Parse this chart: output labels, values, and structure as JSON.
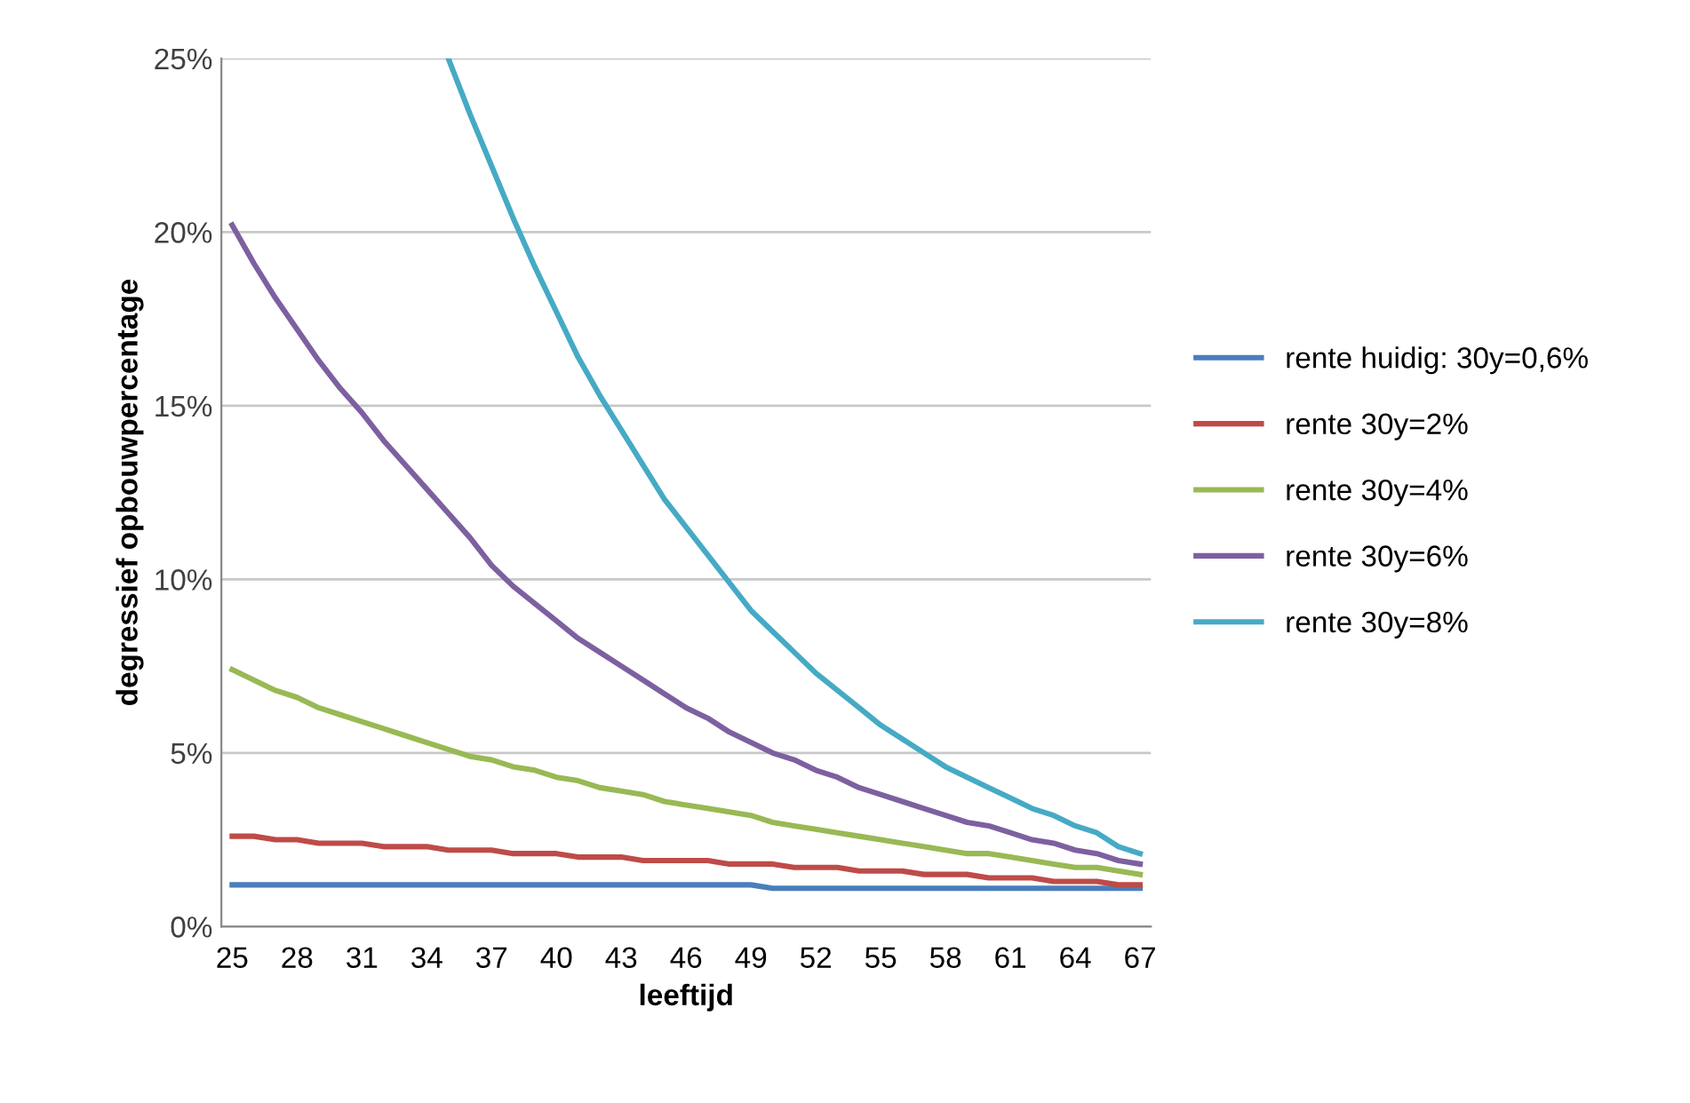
{
  "chart_data": {
    "type": "line",
    "xlabel": "leeftijd",
    "ylabel": "degressief opbouwpercentage",
    "categories": [
      "25",
      null,
      null,
      "28",
      null,
      null,
      "31",
      null,
      null,
      "34",
      null,
      null,
      "37",
      null,
      null,
      "40",
      null,
      null,
      "43",
      null,
      null,
      "46",
      null,
      null,
      "49",
      null,
      null,
      "52",
      null,
      null,
      "55",
      null,
      null,
      "58",
      null,
      null,
      "61",
      null,
      null,
      "64",
      null,
      null,
      "67"
    ],
    "ylim": [
      0,
      25
    ],
    "yticks": [
      {
        "value": 0,
        "label": "0%"
      },
      {
        "value": 5,
        "label": "5%"
      },
      {
        "value": 10,
        "label": "10%"
      },
      {
        "value": 15,
        "label": "15%"
      },
      {
        "value": 20,
        "label": "20%"
      },
      {
        "value": 25,
        "label": "25%"
      }
    ],
    "grid": "y",
    "legend": "right",
    "marker": "none",
    "line_style": "solid",
    "series": [
      {
        "name": "rente huidig: 30y=0,6%",
        "color": "#4a7ebb",
        "values": [
          1.2,
          1.2,
          1.2,
          1.2,
          1.2,
          1.2,
          1.2,
          1.2,
          1.2,
          1.2,
          1.2,
          1.2,
          1.2,
          1.2,
          1.2,
          1.2,
          1.2,
          1.2,
          1.2,
          1.2,
          1.2,
          1.2,
          1.2,
          1.2,
          1.2,
          1.1,
          1.1,
          1.1,
          1.1,
          1.1,
          1.1,
          1.1,
          1.1,
          1.1,
          1.1,
          1.1,
          1.1,
          1.1,
          1.1,
          1.1,
          1.1,
          1.1,
          1.1
        ]
      },
      {
        "name": "rente 30y=2%",
        "color": "#be4b48",
        "values": [
          2.6,
          2.6,
          2.5,
          2.5,
          2.4,
          2.4,
          2.4,
          2.3,
          2.3,
          2.3,
          2.2,
          2.2,
          2.2,
          2.1,
          2.1,
          2.1,
          2.0,
          2.0,
          2.0,
          1.9,
          1.9,
          1.9,
          1.9,
          1.8,
          1.8,
          1.8,
          1.7,
          1.7,
          1.7,
          1.6,
          1.6,
          1.6,
          1.5,
          1.5,
          1.5,
          1.4,
          1.4,
          1.4,
          1.3,
          1.3,
          1.3,
          1.2,
          1.2
        ]
      },
      {
        "name": "rente 30y=4%",
        "color": "#98b954",
        "values": [
          7.4,
          7.1,
          6.8,
          6.6,
          6.3,
          6.1,
          5.9,
          5.7,
          5.5,
          5.3,
          5.1,
          4.9,
          4.8,
          4.6,
          4.5,
          4.3,
          4.2,
          4.0,
          3.9,
          3.8,
          3.6,
          3.5,
          3.4,
          3.3,
          3.2,
          3.0,
          2.9,
          2.8,
          2.7,
          2.6,
          2.5,
          2.4,
          2.3,
          2.2,
          2.1,
          2.1,
          2.0,
          1.9,
          1.8,
          1.7,
          1.7,
          1.6,
          1.5
        ]
      },
      {
        "name": "rente 30y=6%",
        "color": "#7d60a0",
        "values": [
          20.2,
          19.1,
          18.1,
          17.2,
          16.3,
          15.5,
          14.8,
          14.0,
          13.3,
          12.6,
          11.9,
          11.2,
          10.4,
          9.8,
          9.3,
          8.8,
          8.3,
          7.9,
          7.5,
          7.1,
          6.7,
          6.3,
          6.0,
          5.6,
          5.3,
          5.0,
          4.8,
          4.5,
          4.3,
          4.0,
          3.8,
          3.6,
          3.4,
          3.2,
          3.0,
          2.9,
          2.7,
          2.5,
          2.4,
          2.2,
          2.1,
          1.9,
          1.8
        ]
      },
      {
        "name": "rente 30y=8%",
        "color": "#46aac5",
        "values": [
          null,
          null,
          null,
          null,
          null,
          null,
          null,
          null,
          null,
          null,
          25.0,
          23.4,
          21.9,
          20.4,
          19.0,
          17.7,
          16.4,
          15.3,
          14.3,
          13.3,
          12.3,
          11.5,
          10.7,
          9.9,
          9.1,
          8.5,
          7.9,
          7.3,
          6.8,
          6.3,
          5.8,
          5.4,
          5.0,
          4.6,
          4.3,
          4.0,
          3.7,
          3.4,
          3.2,
          2.9,
          2.7,
          2.3,
          2.1
        ]
      }
    ]
  }
}
